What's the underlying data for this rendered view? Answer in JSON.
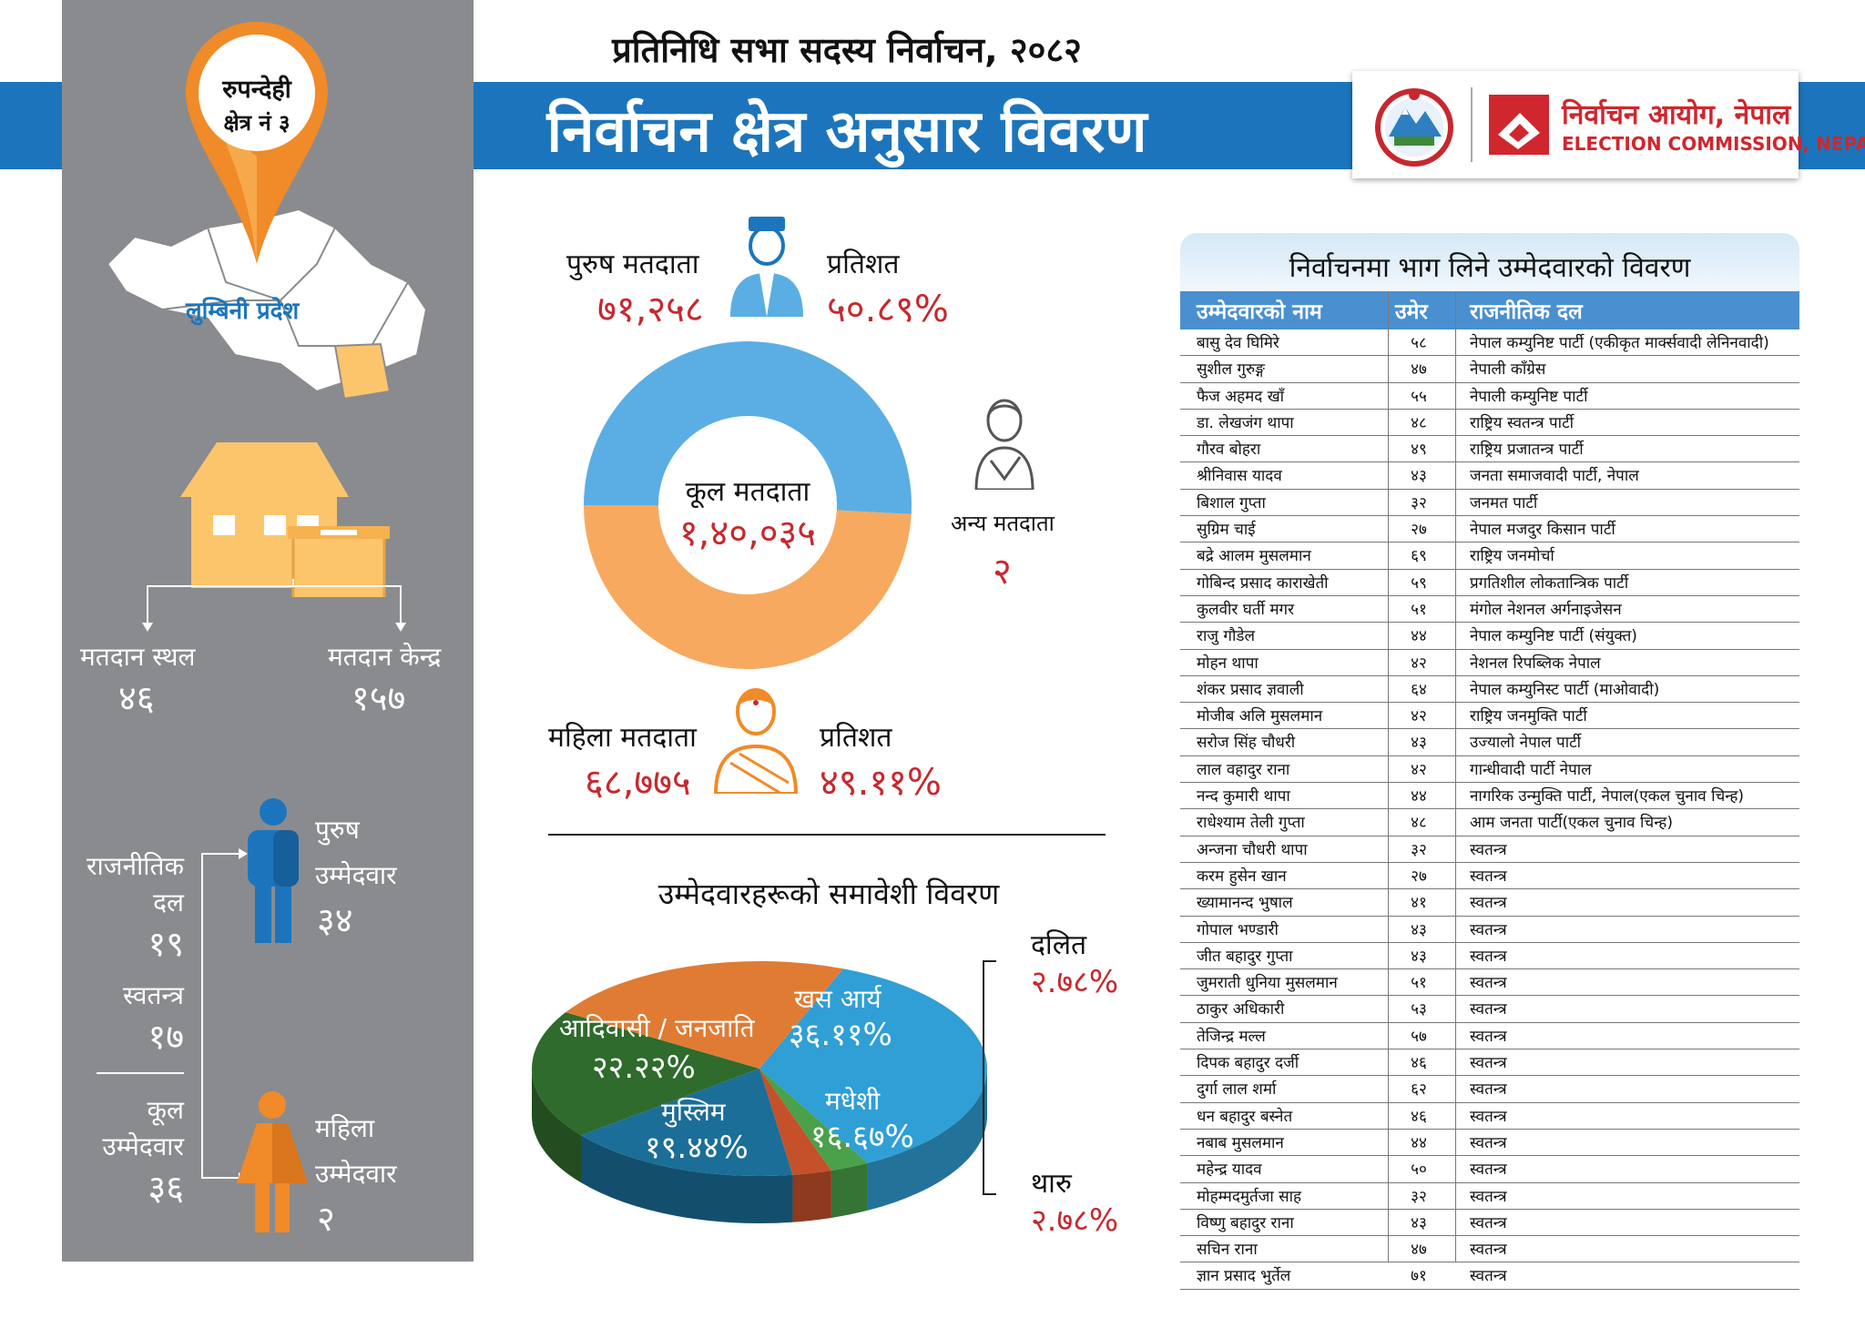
{
  "header": {
    "subtitle": "प्रतिनिधि सभा सदस्य निर्वाचन, २०८२",
    "title": "निर्वाचन क्षेत्र अनुसार विवरण",
    "commission_np": "निर्वाचन आयोग, नेपाल",
    "commission_en": "ELECTION COMMISSION, NEPAL"
  },
  "left": {
    "district": "रुपन्देही",
    "constituency": "क्षेत्र नं ३",
    "province": "लुम्बिनी प्रदेश",
    "polling_place_label": "मतदान स्थल",
    "polling_place_value": "४६",
    "polling_center_label": "मतदान केन्द्र",
    "polling_center_value": "१५७",
    "party_label_1": "राजनीतिक",
    "party_label_2": "दल",
    "party_value": "१९",
    "independent_label": "स्वतन्त्र",
    "independent_value": "१७",
    "total_label_1": "कूल",
    "total_label_2": "उम्मेदवार",
    "total_value": "३६",
    "male_cand_label_1": "पुरुष",
    "male_cand_label_2": "उम्मेदवार",
    "male_cand_value": "३४",
    "female_cand_label_1": "महिला",
    "female_cand_label_2": "उम्मेदवार",
    "female_cand_value": "२"
  },
  "voters": {
    "male_label": "पुरुष मतदाता",
    "male_value": "७१,२५८",
    "male_pct_label": "प्रतिशत",
    "male_pct_value": "५०.८९%",
    "total_label": "कूल मतदाता",
    "total_value": "१,४०,०३५",
    "other_label": "अन्य मतदाता",
    "other_value": "२",
    "female_label": "महिला मतदाता",
    "female_value": "६८,७७५",
    "female_pct_label": "प्रतिशत",
    "female_pct_value": "४९.११%"
  },
  "colors": {
    "blue": "#1c75bc",
    "male_arc": "#5aaee3",
    "female_arc": "#f7a960",
    "red": "#c7282e",
    "gray_panel": "#8a8b8e"
  },
  "chart_data": [
    {
      "type": "pie",
      "title": "",
      "categories": [
        "पुरुष मतदाता",
        "महिला मतदाता",
        "अन्य मतदाता"
      ],
      "values": [
        71258,
        68775,
        2
      ],
      "donut": true
    },
    {
      "type": "pie",
      "title": "उम्मेदवारहरूको समावेशी विवरण",
      "slices": [
        {
          "name": "खस आर्य",
          "label": "३६.११%",
          "value": 36.11,
          "color": "#2f9fd6"
        },
        {
          "name": "दलित",
          "label": "२.७८%",
          "value": 2.78,
          "color": "#4aa14a"
        },
        {
          "name": "थारु",
          "label": "२.७८%",
          "value": 2.78,
          "color": "#c4512a"
        },
        {
          "name": "मधेशी",
          "label": "१६.६७%",
          "value": 16.67,
          "color": "#1b6e97"
        },
        {
          "name": "मुस्लिम",
          "label": "१९.४४%",
          "value": 19.44,
          "color": "#2e6b2c"
        },
        {
          "name": "आदिवासी / जनजाति",
          "label": "२२.२२%",
          "value": 22.22,
          "color": "#e07b34"
        }
      ]
    }
  ],
  "candidates": {
    "title": "निर्वाचनमा भाग लिने उम्मेदवारको विवरण",
    "headers": [
      "उम्मेदवारको नाम",
      "उमेर",
      "राजनीतिक दल"
    ],
    "rows": [
      [
        "बासु देव घिमिरे",
        "५८",
        "नेपाल कम्युनिष्ट पार्टी (एकीकृत मार्क्सवादी लेनिनवादी)"
      ],
      [
        "सुशील गुरुङ्ग",
        "४७",
        "नेपाली काँग्रेस"
      ],
      [
        "फैज अहमद खाँ",
        "५५",
        "नेपाली कम्युनिष्ट पार्टी"
      ],
      [
        "डा. लेखजंग थापा",
        "४८",
        "राष्ट्रिय स्वतन्त्र पार्टी"
      ],
      [
        "गौरव बोहरा",
        "४९",
        "राष्ट्रिय प्रजातन्त्र पार्टी"
      ],
      [
        "श्रीनिवास यादव",
        "४३",
        "जनता समाजवादी पार्टी, नेपाल"
      ],
      [
        "बिशाल गुप्ता",
        "३२",
        "जनमत पार्टी"
      ],
      [
        "सुग्रिम चाई",
        "२७",
        "नेपाल मजदुर किसान पार्टी"
      ],
      [
        "बद्रे आलम मुसलमान",
        "६९",
        "राष्ट्रिय जनमोर्चा"
      ],
      [
        "गोबिन्द प्रसाद काराखेती",
        "५९",
        "प्रगतिशील लोकतान्त्रिक पार्टी"
      ],
      [
        "कुलवीर घर्ती मगर",
        "५१",
        "मंगोल नेशनल अर्गनाइजेसन"
      ],
      [
        "राजु गौडेल",
        "४४",
        "नेपाल कम्युनिष्ट पार्टी (संयुक्त)"
      ],
      [
        "मोहन थापा",
        "४२",
        "नेशनल रिपब्लिक नेपाल"
      ],
      [
        "शंकर प्रसाद ज्ञवाली",
        "६४",
        "नेपाल कम्युनिस्ट पार्टी (माओवादी)"
      ],
      [
        "मोजीब अलि मुसलमान",
        "४२",
        "राष्ट्रिय जनमुक्ति पार्टी"
      ],
      [
        "सरोज सिंह चौधरी",
        "४३",
        "उज्यालो नेपाल पार्टी"
      ],
      [
        "लाल वहादुर राना",
        "४२",
        "गान्धीवादी पार्टी नेपाल"
      ],
      [
        "नन्द कुमारी थापा",
        "४४",
        "नागरिक उन्मुक्ति पार्टी, नेपाल(एकल चुनाव चिन्ह)"
      ],
      [
        "राधेश्याम तेली गुप्ता",
        "४८",
        "आम जनता पार्टी(एकल चुनाव चिन्ह)"
      ],
      [
        "अन्जना चौधरी थापा",
        "३२",
        "स्वतन्त्र"
      ],
      [
        "करम हुसेन खान",
        "२७",
        "स्वतन्त्र"
      ],
      [
        "ख्यामानन्द भुषाल",
        "४१",
        "स्वतन्त्र"
      ],
      [
        "गोपाल भण्डारी",
        "४३",
        "स्वतन्त्र"
      ],
      [
        "जीत बहादुर गुप्ता",
        "४३",
        "स्वतन्त्र"
      ],
      [
        "जुमराती धुनिया मुसलमान",
        "५१",
        "स्वतन्त्र"
      ],
      [
        "ठाकुर अधिकारी",
        "५३",
        "स्वतन्त्र"
      ],
      [
        "तेजिन्द्र मल्ल",
        "५७",
        "स्वतन्त्र"
      ],
      [
        "दिपक बहादुर दर्जी",
        "४६",
        "स्वतन्त्र"
      ],
      [
        "दुर्गा लाल शर्मा",
        "६२",
        "स्वतन्त्र"
      ],
      [
        "धन बहादुर बस्नेत",
        "४६",
        "स्वतन्त्र"
      ],
      [
        "नबाब मुसलमान",
        "४४",
        "स्वतन्त्र"
      ],
      [
        "महेन्द्र यादव",
        "५०",
        "स्वतन्त्र"
      ],
      [
        "मोहम्मदमुर्तजा साह",
        "३२",
        "स्वतन्त्र"
      ],
      [
        "विष्णु बहादुर राना",
        "४३",
        "स्वतन्त्र"
      ],
      [
        "सचिन राना",
        "४७",
        "स्वतन्त्र"
      ],
      [
        "ज्ञान प्रसाद भुर्तेल",
        "७१",
        "स्वतन्त्र"
      ]
    ]
  }
}
